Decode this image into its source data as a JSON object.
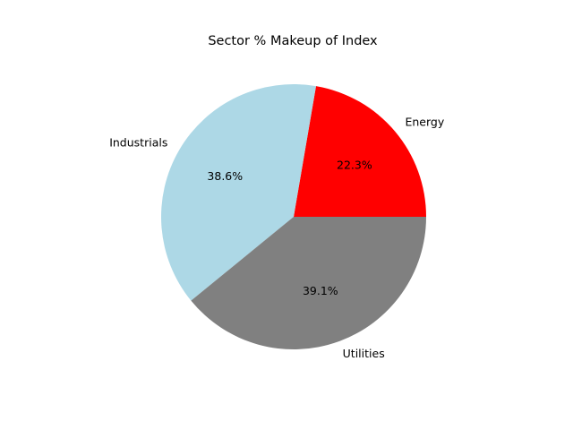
{
  "chart_data": {
    "type": "pie",
    "title": "Sector % Makeup of Index",
    "categories": [
      "Energy",
      "Industrials",
      "Utilities"
    ],
    "values": [
      22.3,
      38.6,
      39.1
    ],
    "percent_labels": [
      "22.3%",
      "38.6%",
      "39.1%"
    ],
    "colors": [
      "#ff0000",
      "#add8e6",
      "#808080"
    ],
    "start_angle_deg": 0,
    "direction": "counterclockwise",
    "legend": "none"
  }
}
